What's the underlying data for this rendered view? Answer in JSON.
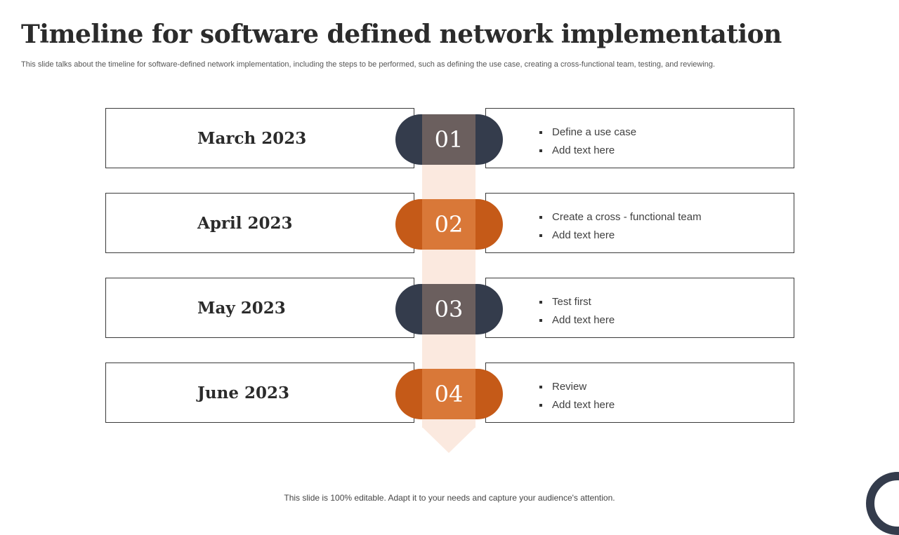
{
  "title": "Timeline for software defined network implementation",
  "subtitle": "This slide talks about the timeline for software-defined network implementation, including the steps to be performed, such as defining the use case, creating a cross-functional team, testing, and reviewing.",
  "colors": {
    "dark": "#343c4c",
    "dark_inner": "#6b5f5e",
    "orange": "#c55a18",
    "orange_inner": "#d97838",
    "spine": "#fbe9df"
  },
  "timeline": [
    {
      "number": "01",
      "date": "March 2023",
      "bullets": [
        "Define a use case",
        "Add text here"
      ]
    },
    {
      "number": "02",
      "date": "April 2023",
      "bullets": [
        "Create a cross - functional team",
        "Add text here"
      ]
    },
    {
      "number": "03",
      "date": "May 2023",
      "bullets": [
        "Test first",
        "Add text here"
      ]
    },
    {
      "number": "04",
      "date": "June 2023",
      "bullets": [
        "Review",
        "Add text here"
      ]
    }
  ],
  "footer": "This slide is 100% editable. Adapt it to your needs and capture your audience's attention."
}
